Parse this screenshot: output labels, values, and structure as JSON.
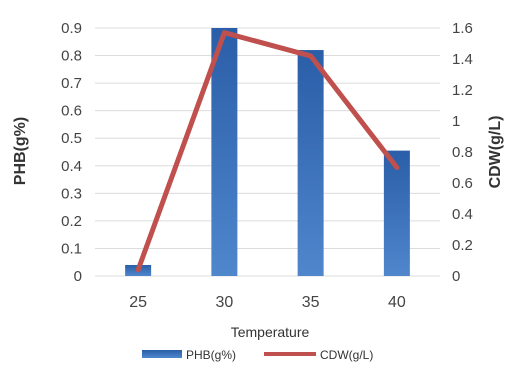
{
  "chart_data": {
    "type": "bar",
    "categories": [
      "25",
      "30",
      "35",
      "40"
    ],
    "xlabel": "Temperature",
    "series": [
      {
        "name": "PHB(g%)",
        "kind": "bar",
        "axis": "left",
        "values": [
          0.04,
          0.9,
          0.82,
          0.455
        ],
        "color": "#3b6fb6"
      },
      {
        "name": "CDW(g/L)",
        "kind": "line",
        "axis": "right",
        "values": [
          0.04,
          1.57,
          1.42,
          0.7
        ],
        "color": "#c0504d"
      }
    ],
    "y_left": {
      "label": "PHB(g%)",
      "min": 0,
      "max": 0.9,
      "ticks": [
        "0",
        "0.1",
        "0.2",
        "0.3",
        "0.4",
        "0.5",
        "0.6",
        "0.7",
        "0.8",
        "0.9"
      ]
    },
    "y_right": {
      "label": "CDW(g/L)",
      "min": 0,
      "max": 1.6,
      "ticks": [
        "0",
        "0.2",
        "0.4",
        "0.6",
        "0.8",
        "1",
        "1.2",
        "1.4",
        "1.6"
      ]
    },
    "grid": true,
    "legend_position": "bottom"
  }
}
